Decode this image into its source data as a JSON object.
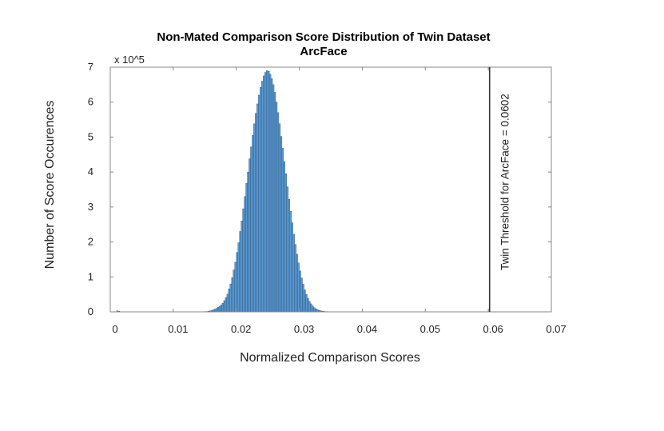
{
  "chart_data": {
    "type": "bar",
    "title": "Non-Mated Comparison Score Distribution of Twin Dataset",
    "subtitle": "ArcFace",
    "xlabel": "Normalized Comparison Scores",
    "ylabel": "Number of Score Occurences",
    "y_multiplier_label": "x 10^5",
    "xlim": [
      0,
      0.07
    ],
    "ylim": [
      0,
      7
    ],
    "x_ticks": [
      "0",
      "0.01",
      "0.02",
      "0.03",
      "0.04",
      "0.05",
      "0.06",
      "0.07"
    ],
    "y_ticks": [
      "0",
      "1",
      "2",
      "3",
      "4",
      "5",
      "6",
      "7"
    ],
    "grid": false,
    "bar_color": "#5b9bd5",
    "bar_edge_color": "#1f3f5f",
    "threshold": {
      "x": 0.0602,
      "label": "Twin Threshold for ArcFace = 0.0602",
      "color": "#333333"
    },
    "histogram": {
      "bin_start": 0.0,
      "bin_width": 0.00025,
      "units_note": "values in units of 10^5 occurrences",
      "values": [
        0,
        0,
        0,
        0,
        0.03,
        0.02,
        0,
        0,
        0,
        0,
        0,
        0,
        0,
        0,
        0,
        0,
        0,
        0,
        0,
        0,
        0,
        0,
        0,
        0,
        0,
        0,
        0,
        0,
        0,
        0,
        0,
        0,
        0,
        0,
        0,
        0,
        0,
        0,
        0,
        0,
        0,
        0,
        0,
        0,
        0,
        0,
        0,
        0,
        0,
        0,
        0,
        0,
        0,
        0,
        0,
        0,
        0,
        0,
        0,
        0,
        0.01,
        0.01,
        0.02,
        0.03,
        0.04,
        0.06,
        0.08,
        0.1,
        0.13,
        0.16,
        0.2,
        0.25,
        0.32,
        0.41,
        0.51,
        0.66,
        0.8,
        0.98,
        1.2,
        1.42,
        1.7,
        1.98,
        2.3,
        2.6,
        2.95,
        3.3,
        3.68,
        4.0,
        4.38,
        4.72,
        5.05,
        5.38,
        5.68,
        5.95,
        6.2,
        6.42,
        6.6,
        6.75,
        6.85,
        6.9,
        6.88,
        6.8,
        6.67,
        6.5,
        6.28,
        6.0,
        5.7,
        5.38,
        5.02,
        4.68,
        4.3,
        3.95,
        3.58,
        3.22,
        2.88,
        2.55,
        2.22,
        1.93,
        1.65,
        1.4,
        1.17,
        0.97,
        0.79,
        0.63,
        0.5,
        0.39,
        0.3,
        0.23,
        0.17,
        0.12,
        0.09,
        0.065,
        0.045,
        0.03,
        0.02,
        0.014,
        0.01,
        0.007,
        0.005,
        0.003,
        0.002,
        0.001
      ]
    }
  }
}
